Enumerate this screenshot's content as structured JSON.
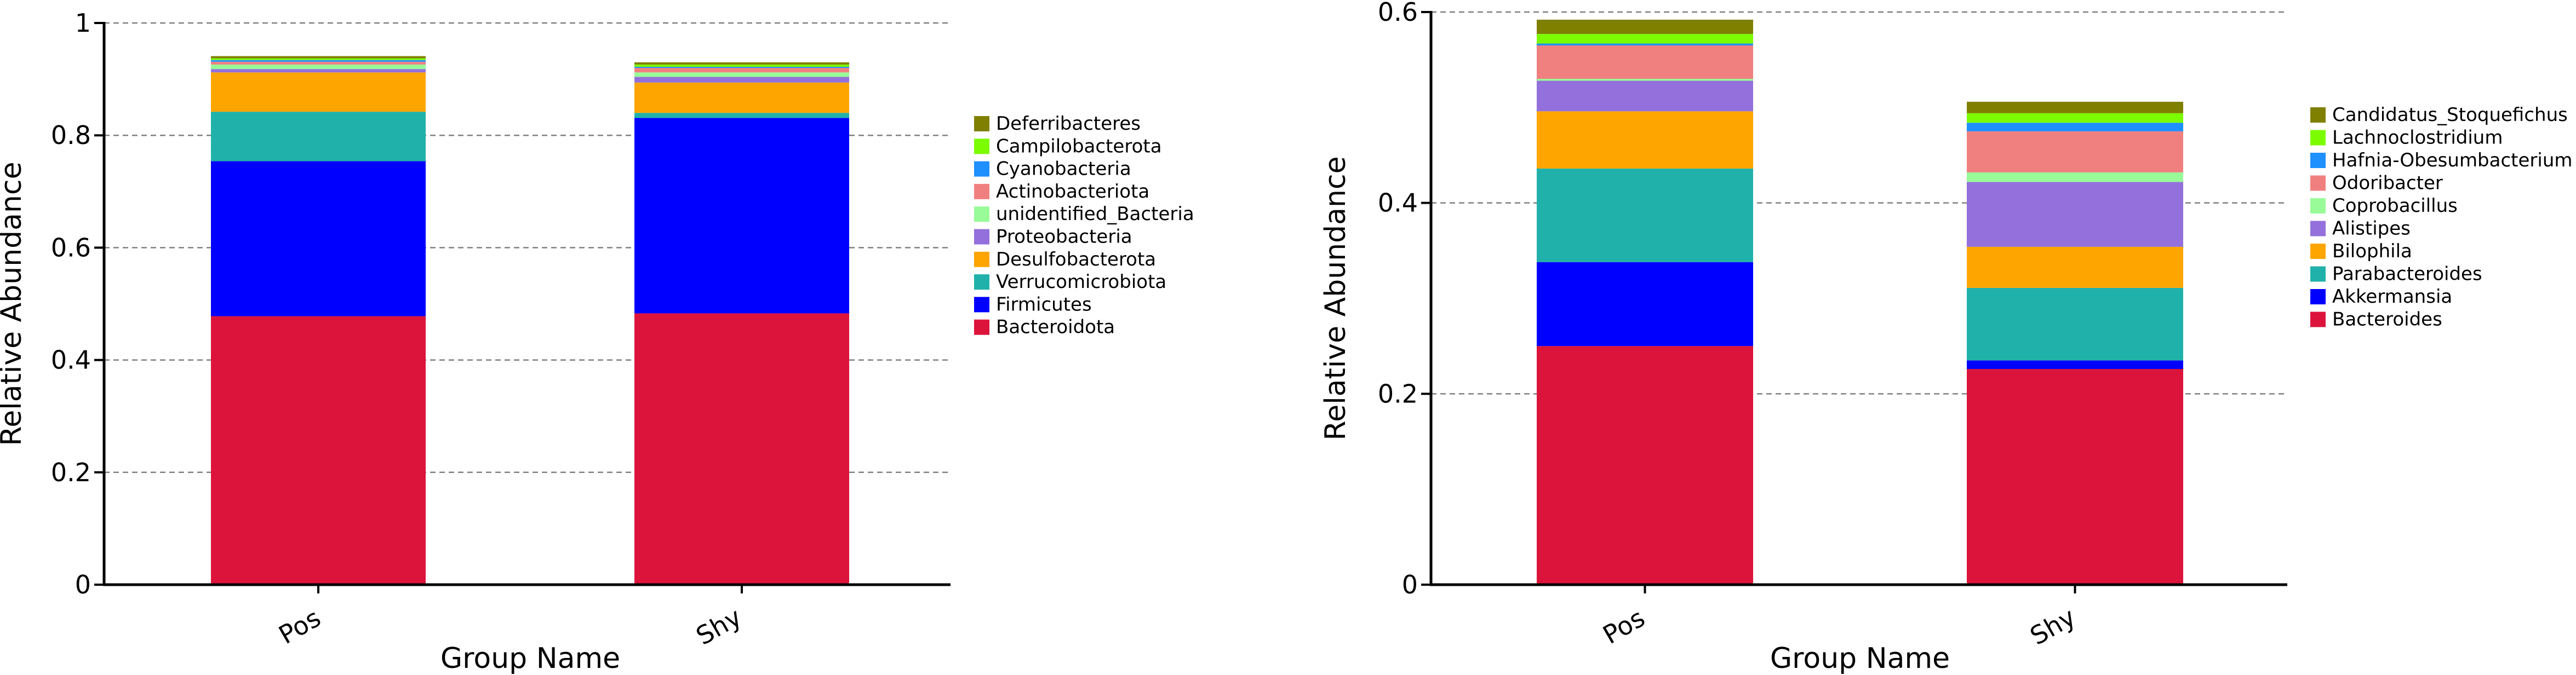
{
  "chart_data": [
    {
      "type": "bar",
      "stacked": true,
      "title": "",
      "xlabel": "Group Name",
      "ylabel": "Relative Abundance",
      "ylim": [
        0,
        1
      ],
      "yticks": [
        0,
        0.2,
        0.4,
        0.6,
        0.8,
        1
      ],
      "ytick_labels": [
        "0",
        "0.2",
        "0.4",
        "0.6",
        "0.8",
        "1"
      ],
      "grid": true,
      "legend_position": "right",
      "categories": [
        "Pos",
        "Shy"
      ],
      "series": [
        {
          "name": "Bacteroidota",
          "color": "#dc143c",
          "values": [
            0.478,
            0.483
          ]
        },
        {
          "name": "Firmicutes",
          "color": "#0000ff",
          "values": [
            0.276,
            0.348
          ]
        },
        {
          "name": "Verrucomicrobiota",
          "color": "#20b2aa",
          "values": [
            0.088,
            0.009
          ]
        },
        {
          "name": "Desulfobacterota",
          "color": "#ffa500",
          "values": [
            0.07,
            0.054
          ]
        },
        {
          "name": "Proteobacteria",
          "color": "#9370db",
          "values": [
            0.006,
            0.01
          ]
        },
        {
          "name": "unidentified_Bacteria",
          "color": "#98fb98",
          "values": [
            0.008,
            0.008
          ]
        },
        {
          "name": "Actinobacteriota",
          "color": "#f08080",
          "values": [
            0.005,
            0.008
          ]
        },
        {
          "name": "Cyanobacteria",
          "color": "#1e90ff",
          "values": [
            0.003,
            0.002
          ]
        },
        {
          "name": "Campilobacterota",
          "color": "#7cfc00",
          "values": [
            0.003,
            0.004
          ]
        },
        {
          "name": "Deferribacteres",
          "color": "#808000",
          "values": [
            0.004,
            0.004
          ]
        }
      ]
    },
    {
      "type": "bar",
      "stacked": true,
      "title": "",
      "xlabel": "Group Name",
      "ylabel": "Relative Abundance",
      "ylim": [
        0,
        0.6
      ],
      "yticks": [
        0,
        0.2,
        0.4,
        0.6
      ],
      "ytick_labels": [
        "0",
        "0.2",
        "0.4",
        "0.6"
      ],
      "grid": true,
      "legend_position": "right",
      "categories": [
        "Pos",
        "Shy"
      ],
      "series": [
        {
          "name": "Bacteroides",
          "color": "#dc143c",
          "values": [
            0.25,
            0.226
          ]
        },
        {
          "name": "Akkermansia",
          "color": "#0000ff",
          "values": [
            0.088,
            0.009
          ]
        },
        {
          "name": "Parabacteroides",
          "color": "#20b2aa",
          "values": [
            0.098,
            0.076
          ]
        },
        {
          "name": "Bilophila",
          "color": "#ffa500",
          "values": [
            0.06,
            0.043
          ]
        },
        {
          "name": "Alistipes",
          "color": "#9370db",
          "values": [
            0.032,
            0.068
          ]
        },
        {
          "name": "Coprobacillus",
          "color": "#98fb98",
          "values": [
            0.002,
            0.01
          ]
        },
        {
          "name": "Odoribacter",
          "color": "#f08080",
          "values": [
            0.035,
            0.043
          ]
        },
        {
          "name": "Hafnia-Obesumbacterium",
          "color": "#1e90ff",
          "values": [
            0.002,
            0.009
          ]
        },
        {
          "name": "Lachnoclostridium",
          "color": "#7cfc00",
          "values": [
            0.01,
            0.01
          ]
        },
        {
          "name": "Candidatus_Stoquefichus",
          "color": "#808000",
          "values": [
            0.015,
            0.012
          ]
        }
      ]
    }
  ]
}
